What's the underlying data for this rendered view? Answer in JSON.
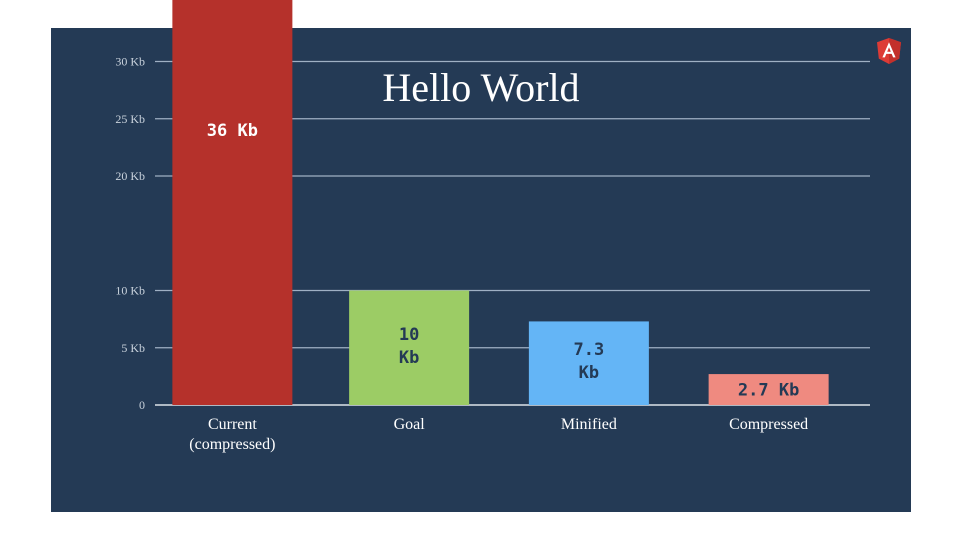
{
  "slide": {
    "title": "Hello World",
    "logo": "angular-logo-icon"
  },
  "colors": {
    "background": "#243a55",
    "gridline": "#9fb0c4",
    "axis": "#dde3ea"
  },
  "chart_data": {
    "type": "bar",
    "title": "Hello World",
    "categories": [
      "Current\n(compressed)",
      "Goal",
      "Minified",
      "Compressed"
    ],
    "values": [
      36,
      10,
      7.3,
      2.7
    ],
    "data_labels": [
      "36 Kb",
      "10\nKb",
      "7.3\nKb",
      "2.7 Kb"
    ],
    "bar_colors": [
      "#b5312b",
      "#9ccc65",
      "#64b5f6",
      "#ef8a80"
    ],
    "label_colors": [
      "#ffffff",
      "#243a55",
      "#243a55",
      "#243a55"
    ],
    "yticks": [
      0,
      5,
      10,
      20,
      25,
      30
    ],
    "ytick_labels": [
      "0",
      "5 Kb",
      "10 Kb",
      "20 Kb",
      "25 Kb",
      "30 Kb"
    ],
    "ylim": [
      0,
      36
    ],
    "grid": true,
    "legend": "none"
  }
}
